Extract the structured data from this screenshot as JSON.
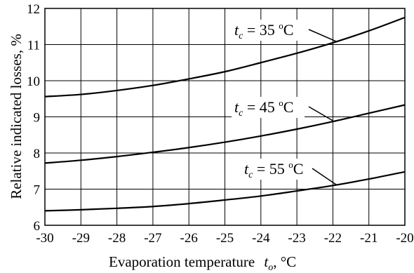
{
  "chart_data": {
    "type": "line",
    "title": "",
    "xlabel_prefix": "Evaporation temperature",
    "xlabel_symbol": "t",
    "xlabel_subscript": "o",
    "xlabel_unit": ", °C",
    "ylabel": "Relative indicated losses, %",
    "xlim": [
      -30,
      -20
    ],
    "ylim": [
      6,
      12
    ],
    "xticks": [
      -30,
      -29,
      -28,
      -27,
      -26,
      -25,
      -24,
      -23,
      -22,
      -21,
      -20
    ],
    "yticks": [
      6,
      7,
      8,
      9,
      10,
      11,
      12
    ],
    "grid": true,
    "x": [
      -30,
      -29,
      -28,
      -27,
      -26,
      -25,
      -24,
      -23,
      -22,
      -21,
      -20
    ],
    "series": [
      {
        "name_symbol": "t",
        "name_subscript": "c",
        "name_value": "= 35",
        "name_sup": "o",
        "name_unit": "C",
        "values": [
          9.56,
          9.62,
          9.73,
          9.87,
          10.05,
          10.25,
          10.5,
          10.76,
          11.05,
          11.38,
          11.75
        ]
      },
      {
        "name_symbol": "t",
        "name_subscript": "c",
        "name_value": "= 45",
        "name_sup": "o",
        "name_unit": "C",
        "values": [
          7.72,
          7.8,
          7.9,
          8.02,
          8.15,
          8.3,
          8.47,
          8.66,
          8.87,
          9.1,
          9.33
        ]
      },
      {
        "name_symbol": "t",
        "name_subscript": "c",
        "name_value": "= 55",
        "name_sup": "o",
        "name_unit": "C",
        "values": [
          6.4,
          6.43,
          6.47,
          6.52,
          6.6,
          6.7,
          6.81,
          6.95,
          7.1,
          7.28,
          7.48
        ]
      }
    ]
  }
}
